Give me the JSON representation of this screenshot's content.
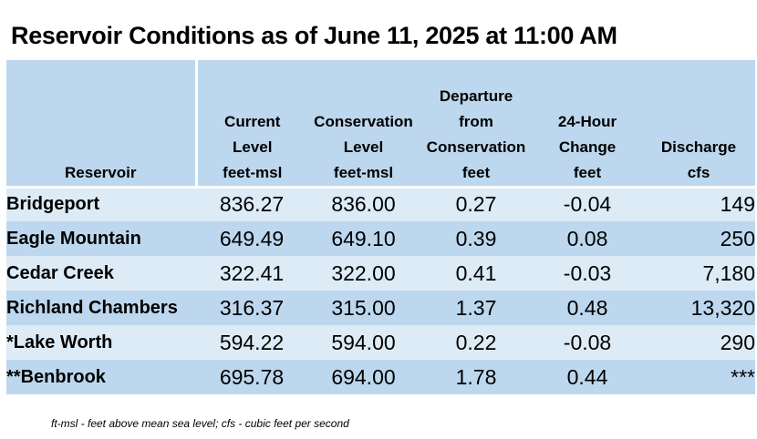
{
  "title": "Reservoir Conditions as of June 11, 2025 at 11:00 AM",
  "columns": [
    {
      "lines": [
        "Reservoir"
      ]
    },
    {
      "lines": [
        "Current",
        "Level",
        "feet-msl"
      ]
    },
    {
      "lines": [
        "Conservation",
        "Level",
        "feet-msl"
      ]
    },
    {
      "lines": [
        "Departure",
        "from",
        "Conservation",
        "feet"
      ]
    },
    {
      "lines": [
        "24-Hour",
        "Change",
        "feet"
      ]
    },
    {
      "lines": [
        "Discharge",
        "cfs"
      ]
    }
  ],
  "rows": [
    {
      "name": "Bridgeport",
      "current": "836.27",
      "conservation": "836.00",
      "departure": "0.27",
      "change": "-0.04",
      "discharge": "149"
    },
    {
      "name": "Eagle Mountain",
      "current": "649.49",
      "conservation": "649.10",
      "departure": "0.39",
      "change": "0.08",
      "discharge": "250"
    },
    {
      "name": "Cedar Creek",
      "current": "322.41",
      "conservation": "322.00",
      "departure": "0.41",
      "change": "-0.03",
      "discharge": "7,180"
    },
    {
      "name": "Richland Chambers",
      "current": "316.37",
      "conservation": "315.00",
      "departure": "1.37",
      "change": "0.48",
      "discharge": "13,320"
    },
    {
      "name": "*Lake Worth",
      "current": "594.22",
      "conservation": "594.00",
      "departure": "0.22",
      "change": "-0.08",
      "discharge": "290"
    },
    {
      "name": "**Benbrook",
      "current": "695.78",
      "conservation": "694.00",
      "departure": "1.78",
      "change": "0.44",
      "discharge": "***"
    }
  ],
  "footnote": "ft-msl - feet above mean sea level; cfs - cubic feet per second"
}
